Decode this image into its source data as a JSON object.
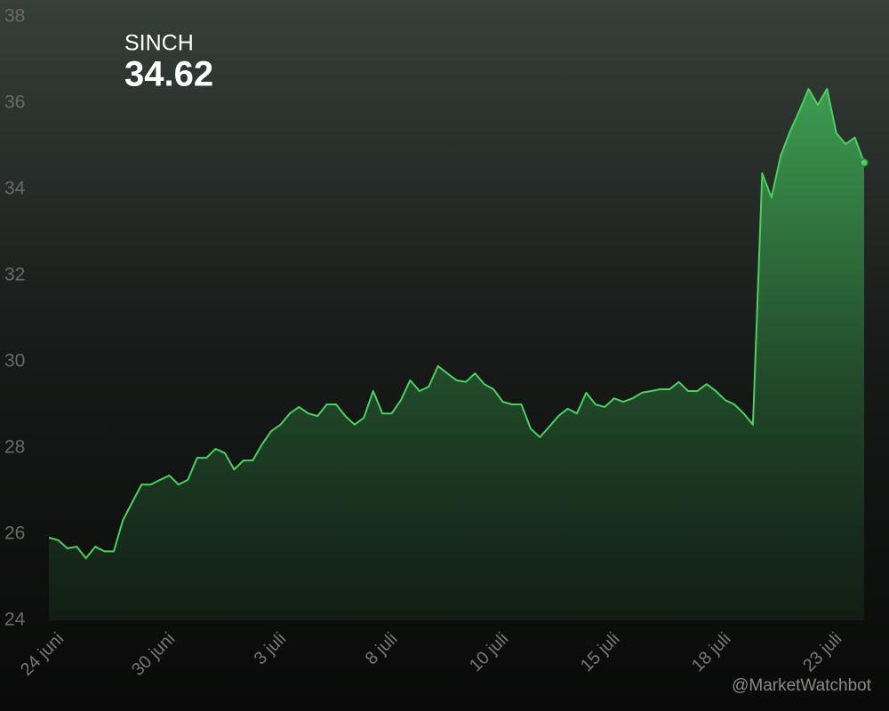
{
  "chart_data": {
    "type": "line",
    "title": "SINCH",
    "last_price": 34.62,
    "watermark": "@MarketWatchbot",
    "categories": [
      "24 juni",
      null,
      null,
      null,
      null,
      null,
      null,
      null,
      null,
      null,
      null,
      null,
      "30 juni",
      null,
      null,
      null,
      null,
      null,
      null,
      null,
      null,
      null,
      null,
      null,
      "3 juli",
      null,
      null,
      null,
      null,
      null,
      null,
      null,
      null,
      null,
      null,
      null,
      "8 juli",
      null,
      null,
      null,
      null,
      null,
      null,
      null,
      null,
      null,
      null,
      null,
      "10 juli",
      null,
      null,
      null,
      null,
      null,
      null,
      null,
      null,
      null,
      null,
      null,
      "15 juli",
      null,
      null,
      null,
      null,
      null,
      null,
      null,
      null,
      null,
      null,
      null,
      "18 juli",
      null,
      null,
      null,
      null,
      null,
      null,
      null,
      null,
      null,
      null,
      null,
      "23 juli",
      null,
      null,
      null,
      null
    ],
    "series": [
      {
        "name": "SINCH",
        "color": "#4cd060",
        "values": [
          25.92,
          25.86,
          25.67,
          25.71,
          25.44,
          25.71,
          25.6,
          25.6,
          26.33,
          26.74,
          27.15,
          27.15,
          27.26,
          27.36,
          27.15,
          27.26,
          27.77,
          27.77,
          27.98,
          27.88,
          27.5,
          27.71,
          27.71,
          28.08,
          28.39,
          28.54,
          28.8,
          28.95,
          28.8,
          28.74,
          29.01,
          29.01,
          28.74,
          28.54,
          28.7,
          29.32,
          28.8,
          28.8,
          29.11,
          29.57,
          29.32,
          29.42,
          29.9,
          29.73,
          29.57,
          29.53,
          29.73,
          29.48,
          29.36,
          29.07,
          29.01,
          29.01,
          28.45,
          28.25,
          28.49,
          28.74,
          28.91,
          28.8,
          29.28,
          29.01,
          28.95,
          29.15,
          29.07,
          29.15,
          29.28,
          29.32,
          29.36,
          29.36,
          29.53,
          29.32,
          29.32,
          29.48,
          29.32,
          29.11,
          29.01,
          28.8,
          28.54,
          34.37,
          33.81,
          34.78,
          35.34,
          35.81,
          36.33,
          35.96,
          36.33,
          35.3,
          35.05,
          35.2,
          34.62
        ]
      }
    ],
    "ylim": [
      24,
      38
    ],
    "yticks": [
      24,
      26,
      28,
      30,
      32,
      34,
      36,
      38
    ],
    "grid": false
  }
}
